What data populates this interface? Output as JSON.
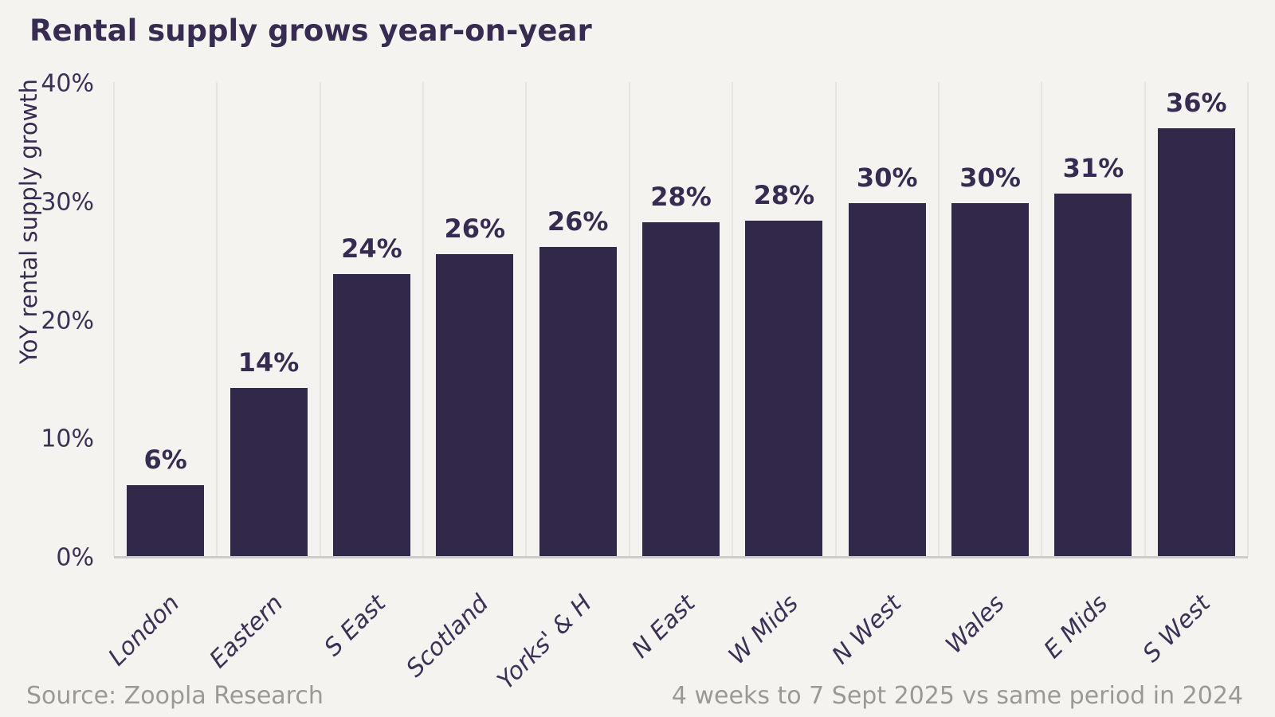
{
  "title": "Rental supply grows year-on-year",
  "chart_data": {
    "type": "bar",
    "title": "Rental supply grows year-on-year",
    "xlabel": "",
    "ylabel": "YoY rental supply growth",
    "categories": [
      "London",
      "Eastern",
      "S East",
      "Scotland",
      "Yorks' & H",
      "N East",
      "W Mids",
      "N West",
      "Wales",
      "E Mids",
      "S West"
    ],
    "values": [
      6,
      14,
      24,
      26,
      26,
      28,
      28,
      30,
      30,
      31,
      36
    ],
    "value_labels": [
      "6%",
      "14%",
      "24%",
      "26%",
      "26%",
      "28%",
      "28%",
      "30%",
      "30%",
      "31%",
      "36%"
    ],
    "bar_heights_precise": [
      6.0,
      14.2,
      23.8,
      25.5,
      26.1,
      28.2,
      28.3,
      29.8,
      29.8,
      30.6,
      36.1
    ],
    "ylim": [
      0,
      40
    ],
    "ytick_labels": [
      "0%",
      "10%",
      "20%",
      "30%",
      "40%"
    ],
    "ytick_values": [
      0,
      10,
      20,
      30,
      40
    ],
    "grid": "vertical",
    "legend": "none",
    "colors": {
      "background": "#f5f3f0",
      "bar": "#32294a",
      "title_text": "#372b52",
      "axis_text": "#3b3157",
      "value_label_text": "#362b50",
      "gridline": "#e7e4e1",
      "axis_line": "#cecccb",
      "footer_text": "#9b9998"
    }
  },
  "footer": {
    "source": "Source: Zoopla Research",
    "period": "4 weeks to 7 Sept 2025 vs same period in 2024"
  }
}
